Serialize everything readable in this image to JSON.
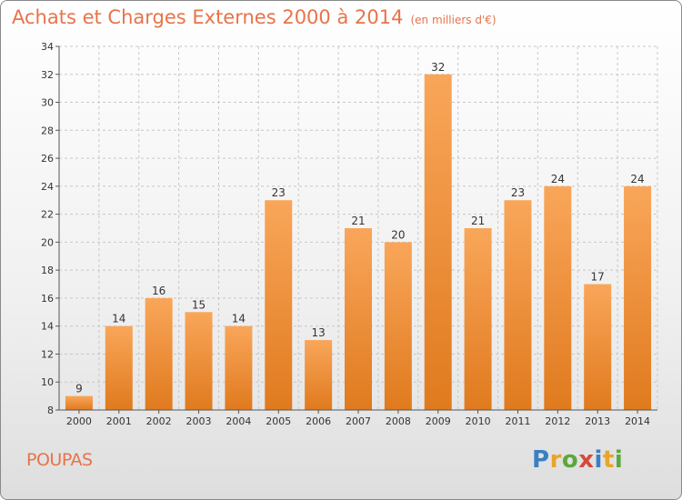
{
  "header": {
    "title": "Achats et Charges Externes 2000 à 2014",
    "subtitle": "(en milliers d'€)"
  },
  "footer": {
    "commune": "POUPAS",
    "logo": {
      "text": "Proxiti",
      "letters": [
        {
          "char": "P",
          "color": "#3a7fc4"
        },
        {
          "char": "r",
          "color": "#e8a52a"
        },
        {
          "char": "o",
          "color": "#5aa83c"
        },
        {
          "char": "x",
          "color": "#d64a3a"
        },
        {
          "char": "i",
          "color": "#3a7fc4"
        },
        {
          "char": "t",
          "color": "#e8a52a"
        },
        {
          "char": "i",
          "color": "#5aa83c"
        }
      ]
    }
  },
  "chart_data": {
    "type": "bar",
    "title": "Achats et Charges Externes 2000 à 2014",
    "subtitle": "(en milliers d'€)",
    "xlabel": "",
    "ylabel": "",
    "categories": [
      "2000",
      "2001",
      "2002",
      "2003",
      "2004",
      "2005",
      "2006",
      "2007",
      "2008",
      "2009",
      "2010",
      "2011",
      "2012",
      "2013",
      "2014"
    ],
    "values": [
      9,
      14,
      16,
      15,
      14,
      23,
      13,
      21,
      20,
      32,
      21,
      23,
      24,
      17,
      24
    ],
    "ylim": [
      8,
      34
    ],
    "yticks": [
      8,
      10,
      12,
      14,
      16,
      18,
      20,
      22,
      24,
      26,
      28,
      30,
      32,
      34
    ],
    "grid": true,
    "data_labels": true,
    "colors": {
      "bar_light": "#f9a65a",
      "bar_dark": "#e07a1e",
      "grid": "#c8c8c8",
      "axis": "#555555"
    }
  }
}
